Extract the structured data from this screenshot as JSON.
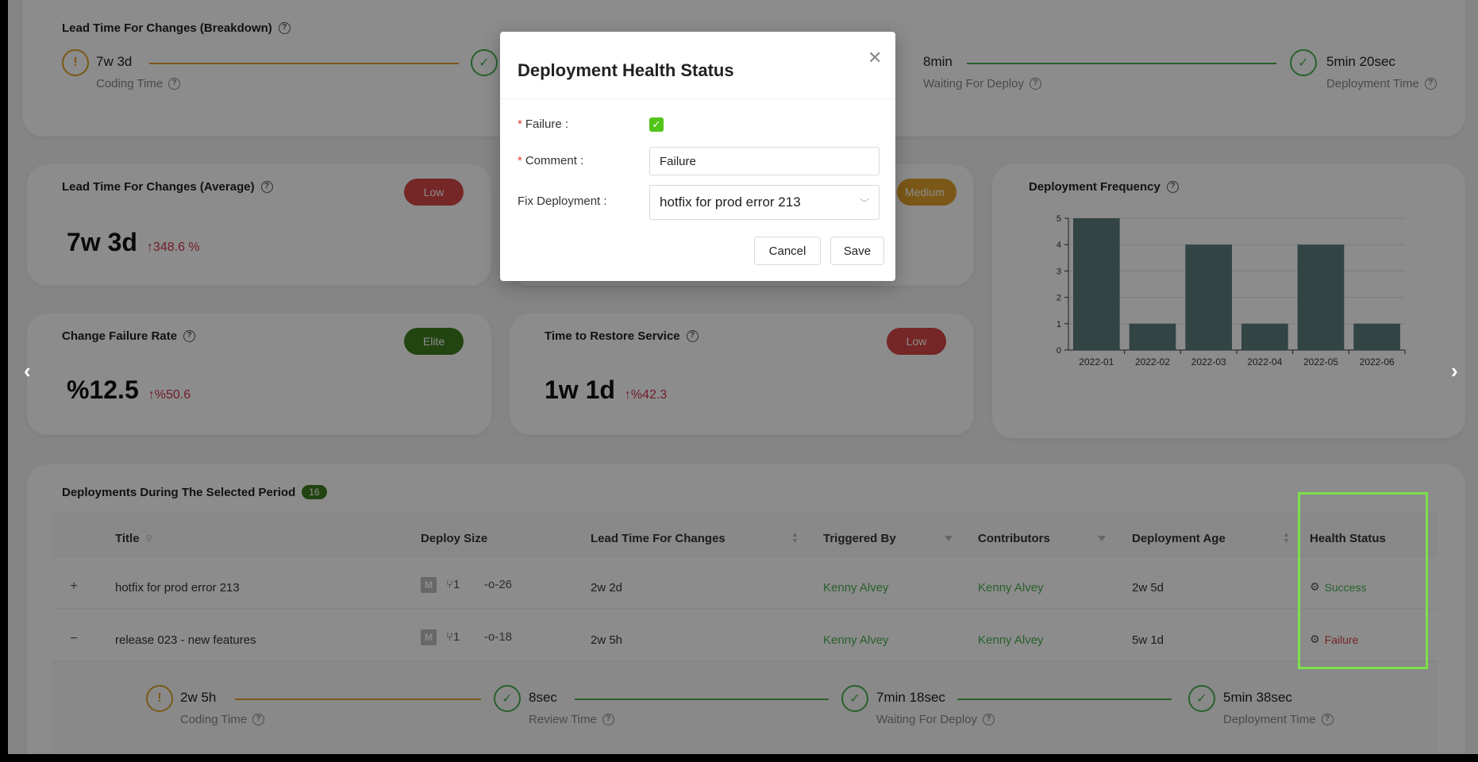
{
  "breakdown": {
    "title": "Lead Time For Changes (Breakdown)",
    "steps": [
      {
        "value": "7w 3d",
        "label": "Coding Time",
        "state": "warn"
      },
      {
        "value": "",
        "label": "",
        "state": "ok"
      },
      {
        "value": "8min",
        "label": "Waiting For Deploy",
        "state": "ok"
      },
      {
        "value": "5min 20sec",
        "label": "Deployment Time",
        "state": "ok"
      }
    ]
  },
  "metrics": {
    "lead_avg": {
      "title": "Lead Time For Changes (Average)",
      "badge": "Low",
      "value": "7w 3d",
      "delta": "↑348.6 %"
    },
    "freq_badge": "Medium",
    "cfr": {
      "title": "Change Failure Rate",
      "badge": "Elite",
      "value": "%12.5",
      "delta": "↑%50.6"
    },
    "ttr": {
      "title": "Time to Restore Service",
      "badge": "Low",
      "value": "1w 1d",
      "delta": "↑%42.3"
    }
  },
  "colors": {
    "low": "#d64545",
    "elite": "#3f7d1f",
    "medium": "#e0a12b",
    "bar": "#5b7d7b"
  },
  "chart_data": {
    "type": "bar",
    "title": "Deployment Frequency",
    "categories": [
      "2022-01",
      "2022-02",
      "2022-03",
      "2022-04",
      "2022-05",
      "2022-06"
    ],
    "values": [
      5,
      1,
      4,
      1,
      4,
      1
    ],
    "ylim": [
      0,
      5
    ],
    "yticks": [
      "0",
      "1",
      "2",
      "3",
      "4",
      "5"
    ],
    "grid": true
  },
  "table": {
    "title": "Deployments During The Selected Period",
    "count": "16",
    "headers": {
      "title": "Title",
      "size": "Deploy Size",
      "lead": "Lead Time For Changes",
      "triggered": "Triggered By",
      "contributors": "Contributors",
      "age": "Deployment Age",
      "health": "Health Status"
    },
    "rows": [
      {
        "expander": "+",
        "title": "hotfix for prod error 213",
        "size": "M",
        "branches": "1",
        "commits": "26",
        "lead": "2w 2d",
        "triggered": "Kenny Alvey",
        "contributors": "Kenny Alvey",
        "age": "2w 5d",
        "status": "Success"
      },
      {
        "expander": "−",
        "title": "release 023 - new features",
        "size": "M",
        "branches": "1",
        "commits": "18",
        "lead": "2w 5h",
        "triggered": "Kenny Alvey",
        "contributors": "Kenny Alvey",
        "age": "5w 1d",
        "status": "Failure"
      }
    ],
    "expanded_steps": [
      {
        "value": "2w 5h",
        "label": "Coding Time",
        "state": "warn"
      },
      {
        "value": "8sec",
        "label": "Review Time",
        "state": "ok"
      },
      {
        "value": "7min 18sec",
        "label": "Waiting For Deploy",
        "state": "ok"
      },
      {
        "value": "5min 38sec",
        "label": "Deployment Time",
        "state": "ok"
      }
    ]
  },
  "modal": {
    "title": "Deployment Health Status",
    "failure_label": "Failure :",
    "comment_label": "Comment :",
    "comment_value": "Failure",
    "fix_label": "Fix Deployment :",
    "fix_value": "hotfix for prod error 213",
    "cancel": "Cancel",
    "save": "Save"
  }
}
